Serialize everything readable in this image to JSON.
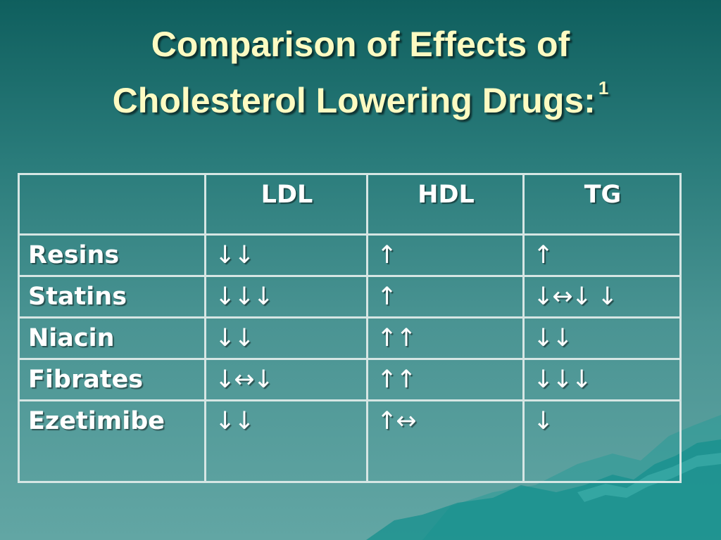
{
  "title": {
    "line1": "Comparison of Effects of",
    "line2": "Cholesterol Lowering Drugs:",
    "superscript": "1"
  },
  "table": {
    "headers": [
      "",
      "LDL",
      "HDL",
      "TG"
    ],
    "rows": [
      {
        "label": "Resins",
        "ldl": "↓↓",
        "hdl": "↑",
        "tg": "↑"
      },
      {
        "label": "Statins",
        "ldl": "↓↓↓",
        "hdl": "↑",
        "tg": "↓↔↓ ↓"
      },
      {
        "label": "Niacin",
        "ldl": "↓↓",
        "hdl": "↑↑",
        "tg": "↓↓"
      },
      {
        "label": "Fibrates",
        "ldl": "↓↔↓",
        "hdl": "↑↑",
        "tg": "↓↓↓"
      },
      {
        "label": "Ezetimibe",
        "ldl": "↓↓",
        "hdl": "↑↔",
        "tg": "↓"
      }
    ]
  },
  "colors": {
    "title_text": "#fdfbc2",
    "background_top": "#0f5f5e",
    "background_bottom": "#62a6a4",
    "table_border": "#d6e6e4",
    "wave_decor": "#1e9a98"
  }
}
